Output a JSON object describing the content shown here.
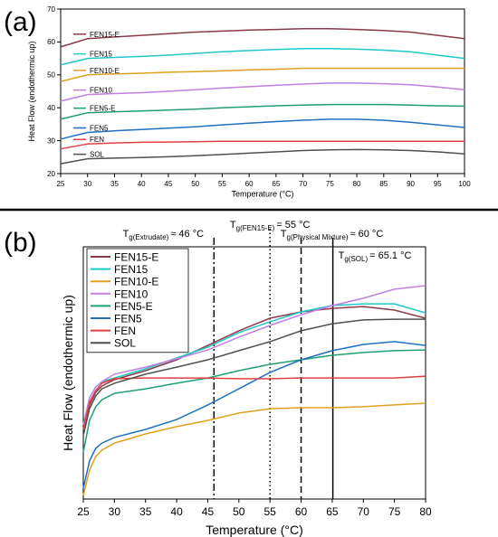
{
  "chart_data": [
    {
      "type": "line",
      "panel": "(a)",
      "xlabel": "Temperature (°C)",
      "ylabel": "Heat Flow (endothermic up)",
      "x": [
        25,
        30,
        35,
        40,
        45,
        50,
        55,
        60,
        65,
        70,
        75,
        80,
        85,
        90,
        95,
        100
      ],
      "xlim": [
        25,
        100
      ],
      "xticks": [
        25,
        30,
        35,
        40,
        45,
        50,
        55,
        60,
        65,
        70,
        75,
        80,
        85,
        90,
        95,
        100
      ],
      "ylim": [
        20,
        70
      ],
      "yticks": [
        20,
        30,
        40,
        50,
        60,
        70
      ],
      "legend": "inline",
      "series": [
        {
          "name": "FEN15-E",
          "color": "#8b3a4a",
          "values": [
            58.5,
            61,
            61.5,
            62,
            62.5,
            63,
            63.3,
            63.6,
            63.8,
            64,
            64,
            63.8,
            63.5,
            63,
            62,
            61
          ]
        },
        {
          "name": "FEN15",
          "color": "#1ec8c8",
          "values": [
            53,
            55,
            55.3,
            55.6,
            56,
            56.5,
            57,
            57.4,
            57.7,
            58,
            58,
            57.8,
            57.5,
            57,
            56,
            55
          ]
        },
        {
          "name": "FEN10-E",
          "color": "#e0a020",
          "values": [
            48,
            50,
            50.3,
            50.5,
            50.8,
            51,
            51.2,
            51.5,
            51.7,
            52,
            52,
            52,
            52,
            52,
            52,
            52
          ]
        },
        {
          "name": "FEN10",
          "color": "#c080e0",
          "values": [
            42,
            44,
            44.3,
            44.6,
            45,
            45.5,
            46,
            46.4,
            46.8,
            47.2,
            47.5,
            47.5,
            47.3,
            47,
            46.3,
            45.5
          ]
        },
        {
          "name": "FEN5-E",
          "color": "#20a070",
          "values": [
            36.5,
            38.5,
            38.8,
            39,
            39.3,
            39.6,
            40,
            40.3,
            40.6,
            40.8,
            41,
            41,
            41,
            40.8,
            40.6,
            40.5
          ]
        },
        {
          "name": "FEN5",
          "color": "#2070c0",
          "values": [
            30.5,
            32.5,
            33,
            33.4,
            33.8,
            34.2,
            34.8,
            35.3,
            35.8,
            36.2,
            36.5,
            36.5,
            36.2,
            35.6,
            34.8,
            34
          ]
        },
        {
          "name": "FEN",
          "color": "#e04040",
          "values": [
            27.5,
            29,
            29.3,
            29.5,
            29.6,
            29.7,
            29.8,
            29.8,
            29.8,
            29.8,
            29.8,
            29.8,
            29.8,
            29.8,
            29.8,
            29.8
          ]
        },
        {
          "name": "SOL",
          "color": "#505050",
          "values": [
            23,
            24.5,
            24.7,
            24.9,
            25.1,
            25.4,
            25.8,
            26.2,
            26.6,
            27,
            27.2,
            27.3,
            27.2,
            27,
            26.6,
            26
          ]
        }
      ]
    },
    {
      "type": "line",
      "panel": "(b)",
      "xlabel": "Temperature (°C)",
      "ylabel": "Heat Flow (endothermic up)",
      "x": [
        25,
        26,
        27,
        28,
        30,
        35,
        40,
        45,
        50,
        55,
        60,
        65,
        70,
        75,
        80
      ],
      "xlim": [
        25,
        80
      ],
      "xticks": [
        25,
        30,
        35,
        40,
        45,
        50,
        55,
        60,
        65,
        70,
        75,
        80
      ],
      "ylim": [
        0,
        100
      ],
      "legend": "upper left",
      "series": [
        {
          "name": "FEN15-E",
          "color": "#8b3a4a",
          "values": [
            27.6,
            37.3,
            42.3,
            44.8,
            47.3,
            50.9,
            55.2,
            60.9,
            66.7,
            71.7,
            74.2,
            75.6,
            76.3,
            74.9,
            71.7
          ]
        },
        {
          "name": "FEN15",
          "color": "#1ec8c8",
          "values": [
            29.4,
            40.1,
            44.4,
            46.6,
            48,
            51.6,
            55.9,
            60.2,
            66,
            70.3,
            74.2,
            76.7,
            77.4,
            77.4,
            73.8
          ]
        },
        {
          "name": "FEN10-E",
          "color": "#e0a020",
          "values": [
            1.4,
            11.5,
            16.8,
            19.4,
            22.2,
            25.8,
            28.7,
            31.2,
            34.1,
            35.8,
            36.2,
            36.2,
            36.6,
            37.3,
            38
          ]
        },
        {
          "name": "FEN10",
          "color": "#c080e0",
          "values": [
            29.4,
            40.1,
            44.4,
            46.6,
            49.5,
            52.3,
            55.6,
            59.1,
            64.2,
            68.8,
            73.1,
            76.7,
            79.6,
            83.2,
            84.6
          ]
        },
        {
          "name": "FEN5-E",
          "color": "#20a070",
          "values": [
            18.6,
            31.2,
            36.6,
            39.4,
            41.9,
            43.7,
            45.9,
            48,
            50.9,
            53.4,
            55.2,
            57,
            58.1,
            58.8,
            59.1
          ]
        },
        {
          "name": "FEN5",
          "color": "#2070c0",
          "values": [
            4.3,
            15.1,
            20.1,
            22.2,
            24.4,
            27.6,
            31.5,
            37.3,
            43.7,
            50.2,
            55.2,
            58.8,
            61.3,
            62.4,
            60.9
          ]
        },
        {
          "name": "FEN",
          "color": "#e04040",
          "values": [
            27.6,
            38.4,
            43,
            45.9,
            47.7,
            48,
            48,
            48,
            47.7,
            47.7,
            48,
            48,
            48,
            48,
            48.7
          ]
        },
        {
          "name": "SOL",
          "color": "#505050",
          "values": [
            25.1,
            35.8,
            40.9,
            43.7,
            45.9,
            49.5,
            52.3,
            55.2,
            58.8,
            62.4,
            66.7,
            69.5,
            71,
            71.3,
            71.3
          ]
        }
      ],
      "annotations": [
        {
          "x": 46,
          "style": "dashdot",
          "symbol": "T",
          "subscript": "g(Extrudate)",
          "text": "≈ 46 °C"
        },
        {
          "x": 55,
          "style": "dotted",
          "symbol": "T",
          "subscript": "g(FEN15-E)",
          "text": "= 55 °C"
        },
        {
          "x": 60,
          "style": "dashed",
          "symbol": "T",
          "subscript": "g(Physical Mixture)",
          "text": "≈ 60 °C"
        },
        {
          "x": 65.1,
          "style": "solid",
          "symbol": "T",
          "subscript": "g(SOL)",
          "text": "= 65.1 °C"
        }
      ]
    }
  ]
}
